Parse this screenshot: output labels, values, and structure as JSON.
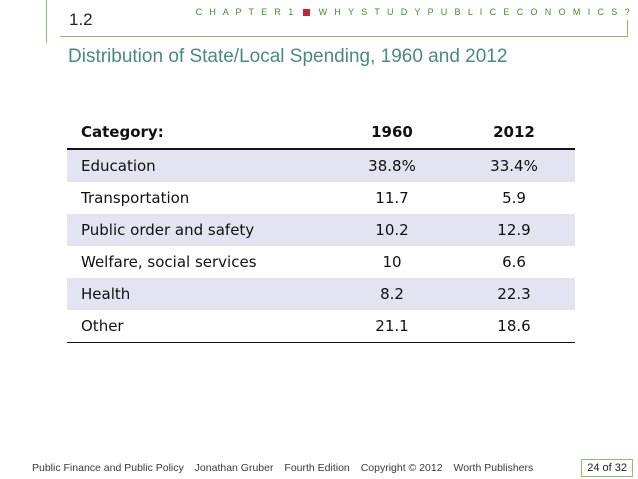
{
  "header": {
    "chapter": "C H A P T E R  1",
    "subtitle": "W H Y  S T U D Y  P U B L I C  E C O N O M I C S ?",
    "section": "1.2",
    "title": "Distribution of State/Local Spending, 1960 and 2012"
  },
  "table": {
    "headers": [
      "Category:",
      "1960",
      "2012"
    ],
    "rows": [
      {
        "category": "Education",
        "y1960": "38.8%",
        "y2012": "33.4%"
      },
      {
        "category": "Transportation",
        "y1960": "11.7",
        "y2012": "5.9"
      },
      {
        "category": "Public order and safety",
        "y1960": "10.2",
        "y2012": "12.9"
      },
      {
        "category": "Welfare, social services",
        "y1960": "10",
        "y2012": "6.6"
      },
      {
        "category": "Health",
        "y1960": "8.2",
        "y2012": "22.3"
      },
      {
        "category": "Other",
        "y1960": "21.1",
        "y2012": "18.6"
      }
    ]
  },
  "footer": {
    "book": "Public Finance and Public Policy",
    "author": "Jonathan Gruber",
    "edition": "Fourth Edition",
    "copyright": "Copyright © 2012",
    "publisher": "Worth Publishers",
    "page": "24 of 32"
  },
  "colors": {
    "accent_green": "#8cbf5e",
    "title_teal": "#4a8a7e",
    "marker_red": "#c0283a",
    "row_shade": "#e3e3f1"
  }
}
